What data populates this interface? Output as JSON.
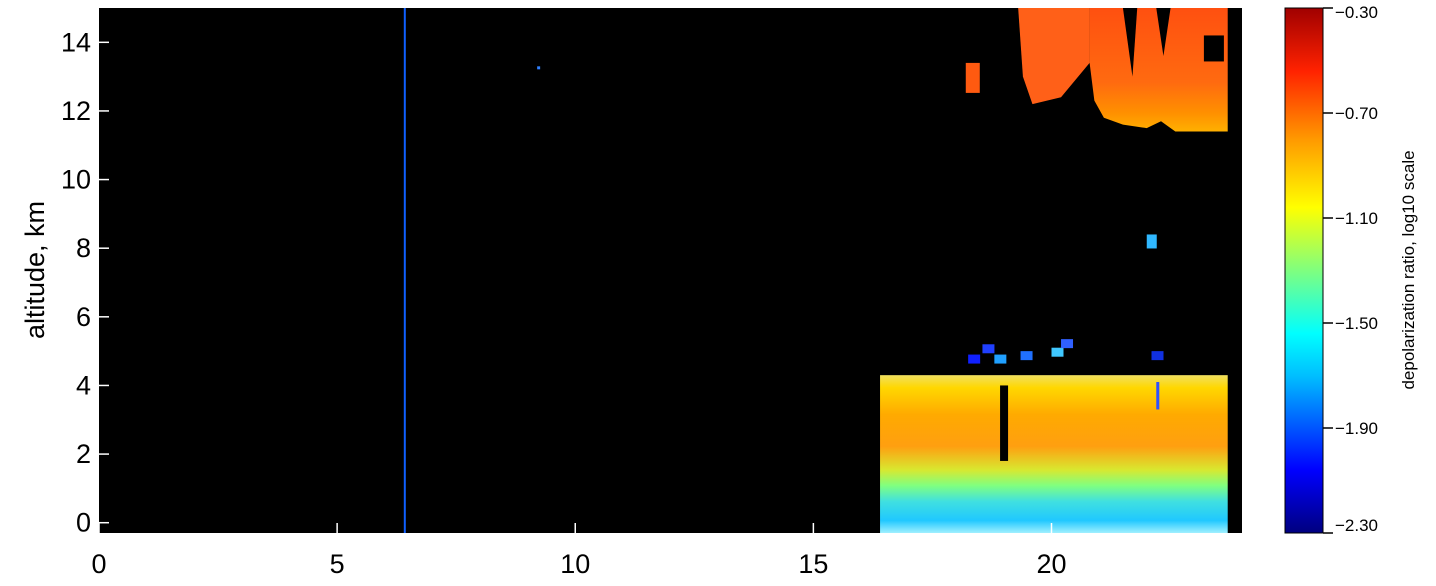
{
  "chart_data": {
    "type": "heatmap",
    "title": "",
    "xlabel": "",
    "ylabel": "altitude, km",
    "xlim": [
      0,
      24
    ],
    "ylim": [
      -0.3,
      15
    ],
    "x_ticks": [
      0,
      5,
      10,
      15,
      20
    ],
    "y_ticks": [
      0,
      2,
      4,
      6,
      8,
      10,
      12,
      14
    ],
    "x_tick_labels": [
      "0",
      "5",
      "10",
      "15",
      "20"
    ],
    "y_tick_labels": [
      "0",
      "2",
      "4",
      "6",
      "8",
      "10",
      "12",
      "14"
    ],
    "background": "#000000",
    "colorbar": {
      "label": "depolarization ratio, log10 scale",
      "range": [
        -2.3,
        -0.3
      ],
      "ticks": [
        -0.3,
        -0.7,
        -1.1,
        -1.5,
        -1.9,
        -2.3
      ],
      "tick_labels": [
        "−0.30",
        "−0.70",
        "−1.10",
        "−1.50",
        "−1.90",
        "−2.30"
      ],
      "colormap": [
        "#00007f",
        "#0000ff",
        "#00bfff",
        "#00ffff",
        "#7fff7f",
        "#ffff00",
        "#ff7f00",
        "#ff0000",
        "#7f0000"
      ]
    },
    "regions": [
      {
        "name": "high cloud",
        "x": [
          20.8,
          23.7
        ],
        "y": [
          11.3,
          15.0
        ],
        "log_depol": -0.75
      },
      {
        "name": "high cloud patches",
        "x": [
          18.0,
          20.8
        ],
        "y": [
          12.2,
          15.0
        ],
        "log_depol": -0.8
      },
      {
        "name": "low layer",
        "x": [
          16.4,
          23.7
        ],
        "y": [
          -0.3,
          4.3
        ],
        "log_depol": -1.1
      },
      {
        "name": "low layer base",
        "x": [
          16.4,
          23.7
        ],
        "y": [
          -0.3,
          1.2
        ],
        "log_depol": -1.6
      },
      {
        "name": "mid cloud specks",
        "x": [
          18.2,
          22.3
        ],
        "y": [
          4.6,
          5.5
        ],
        "log_depol": -1.8
      },
      {
        "name": "isolated cloud",
        "x": [
          22.0,
          22.2
        ],
        "y": [
          8.0,
          8.4
        ],
        "log_depol": -1.5
      },
      {
        "name": "vertical line",
        "x": [
          6.4,
          6.45
        ],
        "y": [
          -0.3,
          15.0
        ],
        "log_depol": -1.9
      }
    ]
  }
}
